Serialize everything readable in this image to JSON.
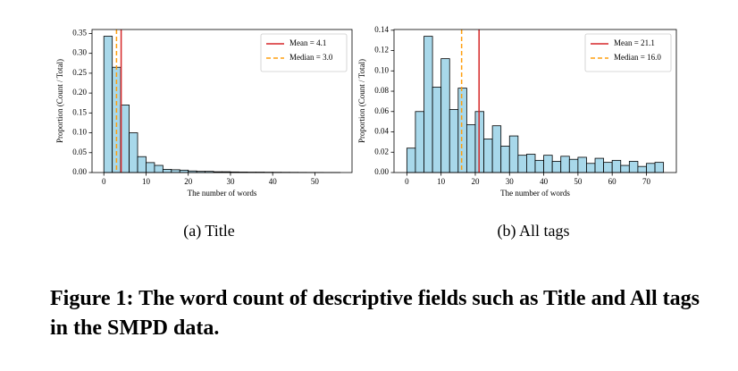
{
  "chart_data": [
    {
      "type": "histogram",
      "caption": "(a)  Title",
      "xlabel": "The number of words",
      "ylabel": "Proportion (Count / Total)",
      "bins": [
        0,
        2,
        4,
        6,
        8,
        10,
        12,
        14,
        16,
        18,
        20,
        22,
        24,
        26,
        28,
        30,
        32,
        34,
        36,
        38,
        40,
        42,
        44,
        46,
        48,
        50,
        52,
        54,
        56
      ],
      "counts": [
        0.343,
        0.265,
        0.17,
        0.1,
        0.04,
        0.025,
        0.018,
        0.008,
        0.007,
        0.006,
        0.004,
        0.003,
        0.003,
        0.002,
        0.002,
        0.0015,
        0.0012,
        0.001,
        0.001,
        0.0008,
        0.0007,
        0.0006,
        0.0005,
        0.0004,
        0.0003,
        0.0003,
        0.0002,
        0.0002
      ],
      "color": "#a8d8ea",
      "xlim": [
        -2.8,
        58.8
      ],
      "xticks": [
        0,
        10,
        20,
        30,
        40,
        50
      ],
      "ylim": [
        0,
        0.36
      ],
      "yticks": [
        {
          "value": 0,
          "label": "0.00"
        },
        {
          "value": 0.05,
          "label": "0.05"
        },
        {
          "value": 0.1,
          "label": "0.10"
        },
        {
          "value": 0.15,
          "label": "0.15"
        },
        {
          "value": 0.2,
          "label": "0.20"
        },
        {
          "value": 0.25,
          "label": "0.25"
        },
        {
          "value": 0.3,
          "label": "0.30"
        },
        {
          "value": 0.35,
          "label": "0.35"
        }
      ],
      "lines": [
        {
          "name": "Mean = 4.1",
          "value": 4.1,
          "color": "#d62728",
          "style": "solid"
        },
        {
          "name": "Median = 3.0",
          "value": 3.0,
          "color": "#ff9f0e",
          "style": "dashed"
        }
      ],
      "legend": "upper right"
    },
    {
      "type": "histogram",
      "caption": "(b)  All tags",
      "xlabel": "The number of words",
      "ylabel": "Proportion (Count / Total)",
      "bins": [
        0,
        2.5,
        5,
        7.5,
        10,
        12.5,
        15,
        17.5,
        20,
        22.5,
        25,
        27.5,
        30,
        32.5,
        35,
        37.5,
        40,
        42.5,
        45,
        47.5,
        50,
        52.5,
        55,
        57.5,
        60,
        62.5,
        65,
        67.5,
        70,
        72.5,
        75
      ],
      "counts": [
        0.024,
        0.06,
        0.134,
        0.084,
        0.112,
        0.062,
        0.083,
        0.047,
        0.06,
        0.033,
        0.046,
        0.026,
        0.036,
        0.017,
        0.018,
        0.012,
        0.017,
        0.011,
        0.016,
        0.013,
        0.015,
        0.009,
        0.014,
        0.01,
        0.012,
        0.007,
        0.011,
        0.006,
        0.009,
        0.01
      ],
      "color": "#a8d8ea",
      "xlim": [
        -3.75,
        78.75
      ],
      "xticks": [
        0,
        10,
        20,
        30,
        40,
        50,
        60,
        70
      ],
      "ylim": [
        0,
        0.1407
      ],
      "yticks": [
        {
          "value": 0,
          "label": "0.00"
        },
        {
          "value": 0.02,
          "label": "0.02"
        },
        {
          "value": 0.04,
          "label": "0.04"
        },
        {
          "value": 0.06,
          "label": "0.06"
        },
        {
          "value": 0.08,
          "label": "0.08"
        },
        {
          "value": 0.1,
          "label": "0.10"
        },
        {
          "value": 0.12,
          "label": "0.12"
        },
        {
          "value": 0.14,
          "label": "0.14"
        }
      ],
      "lines": [
        {
          "name": "Mean = 21.1",
          "value": 21.1,
          "color": "#d62728",
          "style": "solid"
        },
        {
          "name": "Median = 16.0",
          "value": 16.0,
          "color": "#ff9f0e",
          "style": "dashed"
        }
      ],
      "legend": "upper right"
    }
  ],
  "figure_caption": "Figure 1: The word count of descriptive fields such as Title and All tags in the SMPD data."
}
